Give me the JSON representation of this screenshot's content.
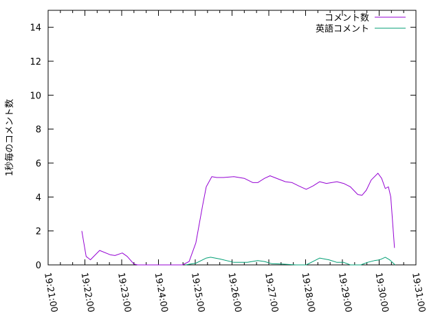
{
  "chart_data": {
    "type": "line",
    "title": "",
    "xlabel": "",
    "ylabel": "1秒毎のコメント数",
    "xlim": [
      "19:21:00",
      "19:31:00"
    ],
    "ylim": [
      0,
      15
    ],
    "x_ticks": [
      "19:21:00",
      "19:22:00",
      "19:23:00",
      "19:24:00",
      "19:25:00",
      "19:26:00",
      "19:27:00",
      "19:28:00",
      "19:29:00",
      "19:30:00",
      "19:31:00"
    ],
    "y_ticks": [
      0,
      2,
      4,
      6,
      8,
      10,
      12,
      14
    ],
    "grid": false,
    "legend_position": "top-right",
    "series": [
      {
        "name": "コメント数",
        "color": "#9400d3",
        "points": [
          [
            "19:21:55",
            2.0
          ],
          [
            "19:22:02",
            0.5
          ],
          [
            "19:22:09",
            0.3
          ],
          [
            "19:22:24",
            0.85
          ],
          [
            "19:22:41",
            0.6
          ],
          [
            "19:22:49",
            0.55
          ],
          [
            "19:23:01",
            0.7
          ],
          [
            "19:23:09",
            0.5
          ],
          [
            "19:23:20",
            0.05
          ],
          [
            "19:23:26",
            0
          ],
          [
            "19:24:39",
            0
          ],
          [
            "19:24:50",
            0.2
          ],
          [
            "19:25:01",
            1.3
          ],
          [
            "19:25:12",
            3.5
          ],
          [
            "19:25:18",
            4.6
          ],
          [
            "19:25:27",
            5.2
          ],
          [
            "19:25:35",
            5.15
          ],
          [
            "19:25:46",
            5.15
          ],
          [
            "19:26:03",
            5.2
          ],
          [
            "19:26:20",
            5.1
          ],
          [
            "19:26:34",
            4.85
          ],
          [
            "19:26:42",
            4.85
          ],
          [
            "19:26:53",
            5.1
          ],
          [
            "19:27:02",
            5.25
          ],
          [
            "19:27:16",
            5.05
          ],
          [
            "19:27:27",
            4.9
          ],
          [
            "19:27:38",
            4.85
          ],
          [
            "19:27:49",
            4.65
          ],
          [
            "19:28:01",
            4.45
          ],
          [
            "19:28:12",
            4.65
          ],
          [
            "19:28:23",
            4.9
          ],
          [
            "19:28:34",
            4.8
          ],
          [
            "19:28:51",
            4.9
          ],
          [
            "19:29:02",
            4.8
          ],
          [
            "19:29:13",
            4.6
          ],
          [
            "19:29:25",
            4.15
          ],
          [
            "19:29:32",
            4.1
          ],
          [
            "19:29:39",
            4.4
          ],
          [
            "19:29:47",
            5.0
          ],
          [
            "19:29:58",
            5.4
          ],
          [
            "19:30:04",
            5.1
          ],
          [
            "19:30:10",
            4.5
          ],
          [
            "19:30:15",
            4.6
          ],
          [
            "19:30:19",
            4.0
          ],
          [
            "19:30:25",
            1.0
          ]
        ]
      },
      {
        "name": "英語コメント",
        "color": "#009e73",
        "points": [
          [
            "19:24:44",
            0
          ],
          [
            "19:25:01",
            0.1
          ],
          [
            "19:25:18",
            0.4
          ],
          [
            "19:25:25",
            0.45
          ],
          [
            "19:25:40",
            0.35
          ],
          [
            "19:26:03",
            0.15
          ],
          [
            "19:26:25",
            0.15
          ],
          [
            "19:26:42",
            0.25
          ],
          [
            "19:26:53",
            0.2
          ],
          [
            "19:27:05",
            0.07
          ],
          [
            "19:27:21",
            0.05
          ],
          [
            "19:27:44",
            0
          ],
          [
            "19:28:01",
            0
          ],
          [
            "19:28:12",
            0.2
          ],
          [
            "19:28:23",
            0.4
          ],
          [
            "19:28:38",
            0.3
          ],
          [
            "19:28:51",
            0.15
          ],
          [
            "19:29:02",
            0.15
          ],
          [
            "19:29:13",
            0
          ],
          [
            "19:29:30",
            0
          ],
          [
            "19:29:41",
            0.15
          ],
          [
            "19:29:52",
            0.25
          ],
          [
            "19:30:01",
            0.3
          ],
          [
            "19:30:10",
            0.45
          ],
          [
            "19:30:17",
            0.3
          ],
          [
            "19:30:26",
            0
          ]
        ]
      }
    ]
  }
}
